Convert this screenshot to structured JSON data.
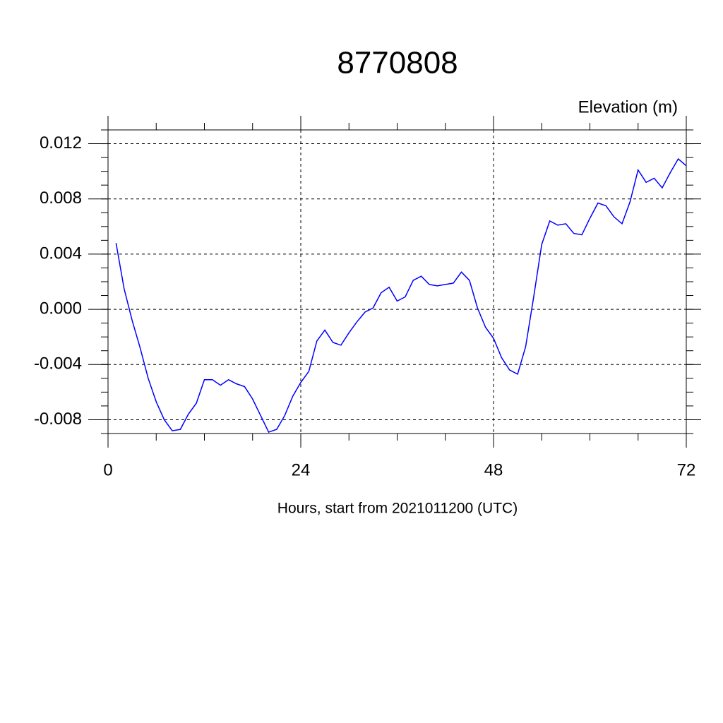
{
  "chart_data": {
    "type": "line",
    "title": "8770808",
    "subtitle": "Elevation (m)",
    "x_label": "Hours, start from 2021011200 (UTC)",
    "x": [
      1,
      2,
      3,
      4,
      5,
      6,
      7,
      8,
      9,
      10,
      11,
      12,
      13,
      14,
      15,
      16,
      17,
      18,
      19,
      20,
      21,
      22,
      23,
      24,
      25,
      26,
      27,
      28,
      29,
      30,
      31,
      32,
      33,
      34,
      35,
      36,
      37,
      38,
      39,
      40,
      41,
      42,
      43,
      44,
      45,
      46,
      47,
      48,
      49,
      50,
      51,
      52,
      53,
      54,
      55,
      56,
      57,
      58,
      59,
      60,
      61,
      62,
      63,
      64,
      65,
      66,
      67,
      68,
      69,
      70,
      71,
      72
    ],
    "series": [
      {
        "name": "elevation",
        "color": "#0000ff",
        "values": [
          0.0048,
          0.0015,
          -0.0008,
          -0.0028,
          -0.005,
          -0.0067,
          -0.008,
          -0.0088,
          -0.0087,
          -0.0076,
          -0.0068,
          -0.0051,
          -0.0051,
          -0.0055,
          -0.0051,
          -0.0054,
          -0.0056,
          -0.0065,
          -0.0077,
          -0.0089,
          -0.0087,
          -0.0077,
          -0.0063,
          -0.0053,
          -0.0045,
          -0.0023,
          -0.0015,
          -0.0024,
          -0.0026,
          -0.0017,
          -0.0009,
          -0.0002,
          0.0001,
          0.0012,
          0.0016,
          0.0006,
          0.0009,
          0.0021,
          0.0024,
          0.0018,
          0.0017,
          0.0018,
          0.0019,
          0.0027,
          0.0021,
          0.0001,
          -0.0013,
          -0.0021,
          -0.0035,
          -0.0044,
          -0.0047,
          -0.0027,
          0.0009,
          0.0047,
          0.0064,
          0.0061,
          0.0062,
          0.0055,
          0.0054,
          0.0066,
          0.0077,
          0.0075,
          0.0067,
          0.0062,
          0.0078,
          0.0101,
          0.0092,
          0.0095,
          0.0088,
          0.0099,
          0.0109,
          0.0104
        ]
      }
    ],
    "xlim": [
      0,
      72
    ],
    "xticks": [
      0,
      24,
      48,
      72
    ],
    "x_minor_step": 6,
    "ylim": [
      -0.009,
      0.013
    ],
    "yticks": [
      -0.008,
      -0.004,
      {
        "value": 0,
        "label": "0.000"
      },
      0.004,
      0.008,
      0.012
    ],
    "y_minor_step": 0.001,
    "grid": true
  }
}
